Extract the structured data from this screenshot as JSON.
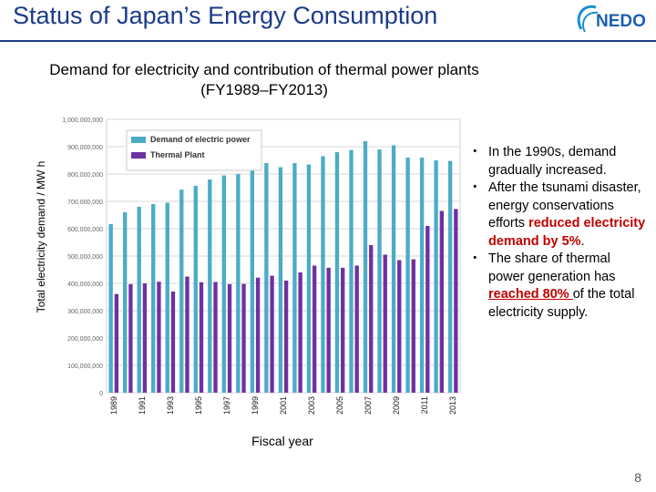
{
  "header": {
    "title": "Status of Japan’s Energy Consumption",
    "logo_text": "NEDO"
  },
  "chart_data": {
    "type": "bar",
    "title": "Demand for electricity and contribution of thermal power plants",
    "subtitle": "(FY1989–FY2013)",
    "xlabel": "Fiscal year",
    "ylabel": "Total electricity demand / MW h",
    "ylim": [
      0,
      1000000000
    ],
    "yticks": [
      {
        "value": 0,
        "label": "0"
      },
      {
        "value": 100000000,
        "label": "100,000,000"
      },
      {
        "value": 200000000,
        "label": "200,000,000"
      },
      {
        "value": 300000000,
        "label": "300,000,000"
      },
      {
        "value": 400000000,
        "label": "400,000,000"
      },
      {
        "value": 500000000,
        "label": "500,000,000"
      },
      {
        "value": 600000000,
        "label": "600,000,000"
      },
      {
        "value": 700000000,
        "label": "700,000,000"
      },
      {
        "value": 800000000,
        "label": "800,000,000"
      },
      {
        "value": 900000000,
        "label": "900,000,000"
      },
      {
        "value": 1000000000,
        "label": "1,000,000,000"
      }
    ],
    "categories": [
      "1989",
      "1990",
      "1991",
      "1992",
      "1993",
      "1994",
      "1995",
      "1996",
      "1997",
      "1998",
      "1999",
      "2000",
      "2001",
      "2002",
      "2003",
      "2004",
      "2005",
      "2006",
      "2007",
      "2008",
      "2009",
      "2010",
      "2011",
      "2012",
      "2013"
    ],
    "xtick_labels": [
      "1989",
      "1991",
      "1993",
      "1995",
      "1997",
      "1999",
      "2001",
      "2003",
      "2005",
      "2007",
      "2009",
      "2011",
      "2013"
    ],
    "series": [
      {
        "name": "Demand of electric power",
        "color": "#4bacc6",
        "values": [
          617000000,
          660000000,
          680000000,
          690000000,
          695000000,
          743000000,
          757000000,
          780000000,
          795000000,
          800000000,
          820000000,
          840000000,
          825000000,
          840000000,
          835000000,
          865000000,
          880000000,
          888000000,
          920000000,
          890000000,
          905000000,
          860000000,
          860000000,
          850000000,
          848000000
        ]
      },
      {
        "name": "Thermal Plant",
        "color": "#7030a0",
        "values": [
          361000000,
          397000000,
          400000000,
          406000000,
          370000000,
          425000000,
          404000000,
          405000000,
          397000000,
          398000000,
          421000000,
          428000000,
          410000000,
          440000000,
          465000000,
          457000000,
          457000000,
          465000000,
          540000000,
          505000000,
          485000000,
          488000000,
          610000000,
          665000000,
          672000000
        ]
      }
    ],
    "legend_position": "top-left",
    "grid": true
  },
  "notes": [
    {
      "mark": "・",
      "parts": [
        {
          "text": "In the 1990s, demand gradually increased.",
          "style": ""
        }
      ]
    },
    {
      "mark": "・",
      "parts": [
        {
          "text": "After the tsunami disaster, energy conservations efforts ",
          "style": ""
        },
        {
          "text": "reduced electricity demand by 5%",
          "style": "hl"
        },
        {
          "text": ".",
          "style": ""
        }
      ]
    },
    {
      "mark": "・",
      "parts": [
        {
          "text": "The share of thermal power generation has ",
          "style": ""
        },
        {
          "text": "reached 80% ",
          "style": "hl ul"
        },
        {
          "text": "of the total electricity supply.",
          "style": ""
        }
      ]
    }
  ],
  "page_number": "8"
}
